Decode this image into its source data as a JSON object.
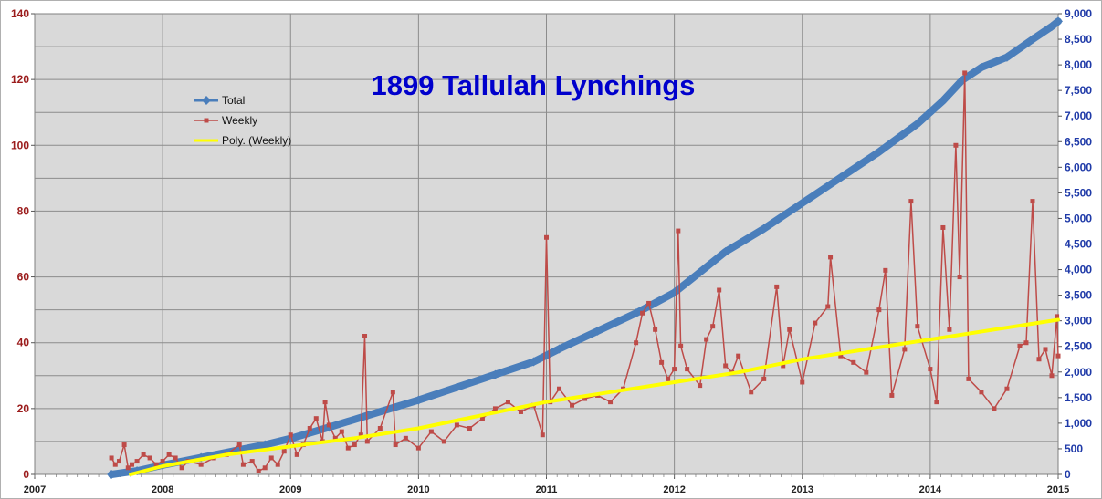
{
  "chart_data": {
    "type": "line",
    "title": "1899 Tallulah Lynchings",
    "xlabel": "",
    "ylabel_left": "",
    "ylabel_right": "",
    "x_ticks": [
      "2007",
      "2008",
      "2009",
      "2010",
      "2011",
      "2012",
      "2013",
      "2014",
      "2015"
    ],
    "xlim": [
      2007,
      2015
    ],
    "y_left_ticks": [
      "0",
      "20",
      "40",
      "60",
      "80",
      "100",
      "120",
      "140"
    ],
    "y_left_lim": [
      0,
      140
    ],
    "y_right_ticks": [
      "0",
      "500",
      "1,000",
      "1,500",
      "2,000",
      "2,500",
      "3,000",
      "3,500",
      "4,000",
      "4,500",
      "5,000",
      "5,500",
      "6,000",
      "6,500",
      "7,000",
      "7,500",
      "8,000",
      "8,500",
      "9,000"
    ],
    "y_right_lim": [
      0,
      9000
    ],
    "grid": true,
    "legend_position": "upper-left",
    "colors": {
      "total": "#4a7ebb",
      "weekly": "#be4b48",
      "poly": "#ffff00",
      "title": "#0000cc",
      "plot_background": "#d9d9d9",
      "left_axis_text": "#9b1c1c",
      "right_axis_text": "#1f3aa8"
    },
    "series": [
      {
        "name": "Total",
        "axis": "right",
        "style": "line-with-diamond-markers",
        "x": [
          2007.6,
          2007.8,
          2008.0,
          2008.3,
          2008.6,
          2008.8,
          2009.0,
          2009.3,
          2009.6,
          2010.0,
          2010.3,
          2010.6,
          2010.9,
          2011.1,
          2011.4,
          2011.7,
          2012.0,
          2012.2,
          2012.4,
          2012.7,
          2013.0,
          2013.3,
          2013.6,
          2013.9,
          2014.1,
          2014.25,
          2014.4,
          2014.6,
          2014.8,
          2014.95,
          2015.0
        ],
        "y": [
          0,
          70,
          180,
          330,
          480,
          580,
          700,
          920,
          1150,
          1450,
          1700,
          1950,
          2200,
          2450,
          2800,
          3150,
          3550,
          3950,
          4350,
          4800,
          5300,
          5800,
          6300,
          6850,
          7300,
          7700,
          7950,
          8150,
          8500,
          8750,
          8850
        ]
      },
      {
        "name": "Weekly",
        "axis": "left",
        "style": "line-with-square-markers",
        "x": [
          2007.6,
          2007.63,
          2007.66,
          2007.7,
          2007.73,
          2007.76,
          2007.8,
          2007.85,
          2007.9,
          2007.95,
          2008.0,
          2008.05,
          2008.1,
          2008.15,
          2008.2,
          2008.3,
          2008.4,
          2008.5,
          2008.6,
          2008.63,
          2008.7,
          2008.75,
          2008.8,
          2008.85,
          2008.9,
          2008.95,
          2009.0,
          2009.05,
          2009.1,
          2009.15,
          2009.2,
          2009.25,
          2009.27,
          2009.3,
          2009.35,
          2009.4,
          2009.45,
          2009.5,
          2009.55,
          2009.58,
          2009.6,
          2009.7,
          2009.8,
          2009.82,
          2009.9,
          2010.0,
          2010.1,
          2010.2,
          2010.3,
          2010.4,
          2010.5,
          2010.6,
          2010.7,
          2010.8,
          2010.9,
          2010.97,
          2011.0,
          2011.03,
          2011.1,
          2011.2,
          2011.3,
          2011.4,
          2011.5,
          2011.6,
          2011.7,
          2011.75,
          2011.8,
          2011.85,
          2011.9,
          2011.95,
          2012.0,
          2012.03,
          2012.05,
          2012.1,
          2012.2,
          2012.25,
          2012.3,
          2012.35,
          2012.4,
          2012.45,
          2012.5,
          2012.6,
          2012.7,
          2012.8,
          2012.85,
          2012.9,
          2013.0,
          2013.1,
          2013.2,
          2013.22,
          2013.3,
          2013.4,
          2013.5,
          2013.6,
          2013.65,
          2013.7,
          2013.8,
          2013.85,
          2013.9,
          2014.0,
          2014.05,
          2014.1,
          2014.15,
          2014.2,
          2014.23,
          2014.27,
          2014.3,
          2014.4,
          2014.5,
          2014.6,
          2014.7,
          2014.75,
          2014.8,
          2014.85,
          2014.9,
          2014.95,
          2014.99,
          2015.0
        ],
        "y": [
          5,
          3,
          4,
          9,
          2,
          3,
          4,
          6,
          5,
          3,
          4,
          6,
          5,
          2,
          4,
          3,
          5,
          6,
          9,
          3,
          4,
          1,
          2,
          5,
          3,
          7,
          12,
          6,
          9,
          14,
          17,
          10,
          22,
          15,
          11,
          13,
          8,
          9,
          12,
          42,
          10,
          14,
          25,
          9,
          11,
          8,
          13,
          10,
          15,
          14,
          17,
          20,
          22,
          19,
          21,
          12,
          72,
          22,
          26,
          21,
          23,
          24,
          22,
          26,
          40,
          49,
          52,
          44,
          34,
          29,
          32,
          74,
          39,
          32,
          27,
          41,
          45,
          56,
          33,
          31,
          36,
          25,
          29,
          57,
          33,
          44,
          28,
          46,
          51,
          66,
          36,
          34,
          31,
          50,
          62,
          24,
          38,
          83,
          45,
          32,
          22,
          75,
          44,
          100,
          60,
          122,
          29,
          25,
          20,
          26,
          39,
          40,
          83,
          35,
          38,
          30,
          48,
          36
        ],
        "x_full_note": ""
      },
      {
        "name": "Poly. (Weekly)",
        "axis": "left",
        "style": "thick-line",
        "x": [
          2007.75,
          2008.0,
          2008.5,
          2009.0,
          2009.5,
          2010.0,
          2010.5,
          2011.0,
          2011.5,
          2012.0,
          2012.5,
          2013.0,
          2013.5,
          2014.0,
          2014.5,
          2015.0
        ],
        "y": [
          0,
          2.5,
          6,
          8.5,
          11,
          14,
          18,
          22,
          25,
          28,
          31,
          35,
          38,
          41,
          44,
          47
        ]
      }
    ]
  }
}
